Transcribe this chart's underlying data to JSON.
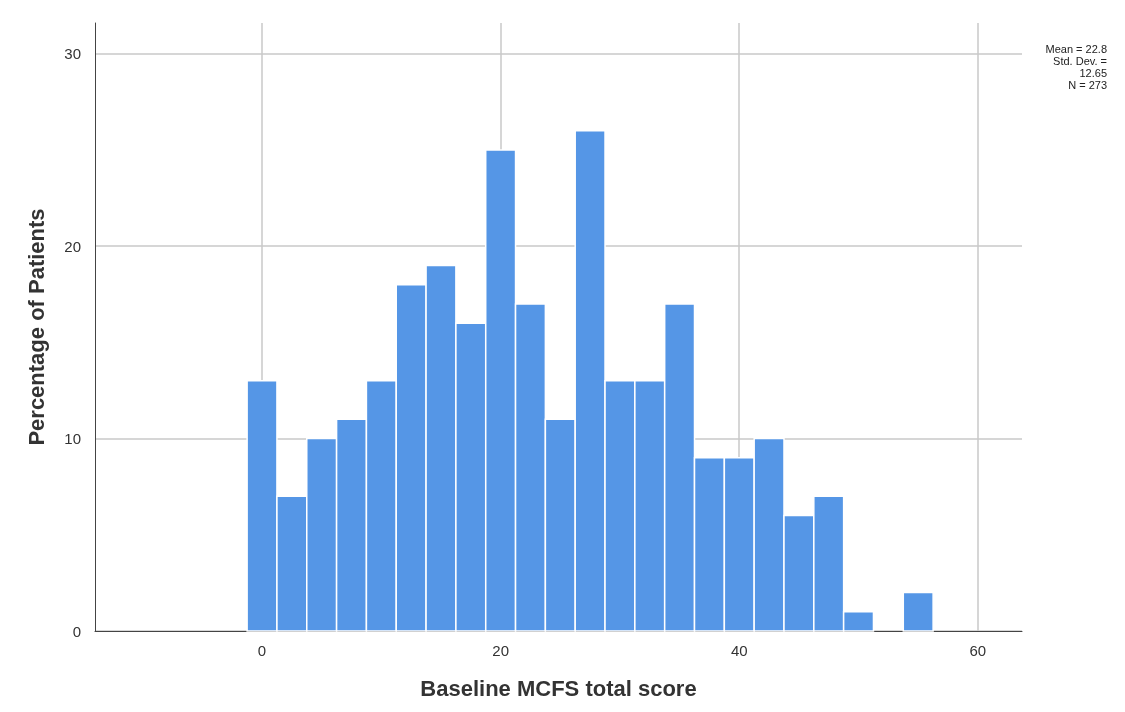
{
  "chart_data": {
    "type": "histogram",
    "xlabel": "Baseline MCFS total score",
    "ylabel": "Percentage of Patients",
    "bins": [
      -1.25,
      1.25,
      3.75,
      6.25,
      8.75,
      11.25,
      13.75,
      16.25,
      18.75,
      21.25,
      23.75,
      26.25,
      28.75,
      31.25,
      33.75,
      36.25,
      38.75,
      41.25,
      43.75,
      46.25,
      48.75,
      51.25,
      53.75,
      56.25
    ],
    "values": [
      13,
      7,
      10,
      11,
      13,
      18,
      19,
      16,
      25,
      17,
      11,
      26,
      13,
      13,
      17,
      9,
      9,
      10,
      6,
      7,
      1,
      0,
      2
    ],
    "color": "#5596e6",
    "xlim": [
      -14,
      63.7
    ],
    "xticks": [
      0,
      20,
      40,
      60
    ],
    "ylim": [
      0,
      31.6
    ],
    "yticks": [
      0,
      10,
      20,
      30
    ],
    "grid": true,
    "annotations": [
      "Mean = 22.8",
      "Std. Dev. =",
      "12.65",
      "N = 273"
    ]
  }
}
